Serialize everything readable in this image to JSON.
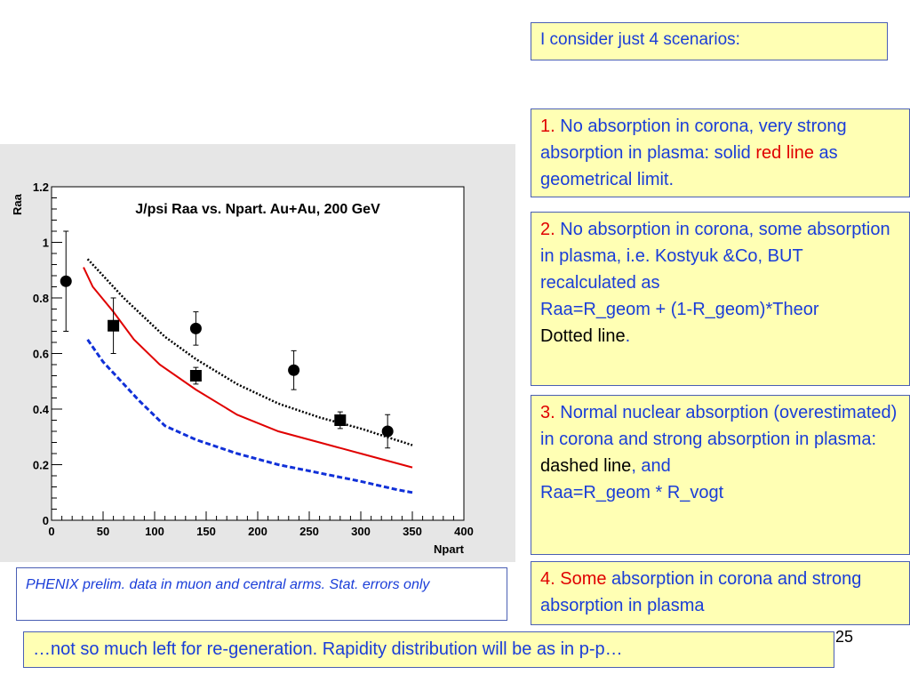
{
  "chart_data": {
    "type": "scatter",
    "title": "J/psi Raa vs. Npart. Au+Au, 200 GeV",
    "xlabel": "Npart",
    "ylabel": "Raa",
    "xlim": [
      0,
      400
    ],
    "ylim": [
      0,
      1.2
    ],
    "x_ticks": [
      "0",
      "50",
      "100",
      "150",
      "200",
      "250",
      "300",
      "350",
      "400"
    ],
    "y_ticks": [
      "0",
      "0.2",
      "0.4",
      "0.6",
      "0.8",
      "1",
      "1.2"
    ],
    "grid": false,
    "series": [
      {
        "marker": "circle",
        "points": [
          {
            "x": 14,
            "y": 0.86,
            "err": 0.18
          },
          {
            "x": 140,
            "y": 0.69,
            "err": 0.06
          },
          {
            "x": 235,
            "y": 0.54,
            "err": 0.07
          },
          {
            "x": 326,
            "y": 0.32,
            "err": 0.06
          }
        ]
      },
      {
        "marker": "square",
        "points": [
          {
            "x": 60,
            "y": 0.7,
            "err": 0.1
          },
          {
            "x": 140,
            "y": 0.52,
            "err": 0.03
          },
          {
            "x": 280,
            "y": 0.36,
            "err": 0.03
          }
        ]
      },
      {
        "line": "solid",
        "color": "#e00000",
        "x": [
          31,
          40,
          60,
          80,
          105,
          140,
          180,
          220,
          260,
          300,
          350
        ],
        "y": [
          0.91,
          0.84,
          0.75,
          0.65,
          0.56,
          0.47,
          0.38,
          0.32,
          0.28,
          0.24,
          0.19
        ]
      },
      {
        "line": "dotted",
        "color": "#000000",
        "x": [
          35,
          50,
          70,
          90,
          110,
          140,
          180,
          220,
          260,
          300,
          350
        ],
        "y": [
          0.94,
          0.88,
          0.8,
          0.73,
          0.66,
          0.58,
          0.49,
          0.42,
          0.37,
          0.33,
          0.27
        ]
      },
      {
        "line": "dashed",
        "color": "#1030d8",
        "x": [
          35,
          50,
          65,
          85,
          110,
          140,
          180,
          220,
          260,
          300,
          335,
          350
        ],
        "y": [
          0.65,
          0.57,
          0.51,
          0.43,
          0.34,
          0.29,
          0.24,
          0.2,
          0.17,
          0.14,
          0.11,
          0.1
        ]
      }
    ]
  },
  "scenarios_header": "I consider just 4 scenarios:",
  "scenario1": {
    "num": "1.",
    "text_a": " No absorption in corona, very strong absorption in plasma: solid ",
    "highlight": "red line",
    "text_b": " as geometrical limit."
  },
  "scenario2": {
    "num": "2.",
    "text_a": " No absorption in corona, some absorption in plasma, i.e. Kostyuk &Co, BUT recalculated as",
    "formula": "Raa=R_geom + (1-R_geom)*Theor",
    "line_label": "Dotted line",
    "dot": "."
  },
  "scenario3": {
    "num": "3.",
    "text_a": " Normal nuclear absorption (overestimated) in corona and strong absorption in plasma:",
    "line_label": "dashed line",
    "text_b": ", and",
    "formula": "Raa=R_geom * R_vogt"
  },
  "scenario4": {
    "num": "4.",
    "word": "Some",
    "text_a": " absorption in corona and strong absorption in plasma"
  },
  "caption": "PHENIX prelim. data in muon and central arms. Stat. errors only",
  "bottom_note": "…not so much left for re-generation. Rapidity distribution will be as in p-p…",
  "page_number": "25"
}
